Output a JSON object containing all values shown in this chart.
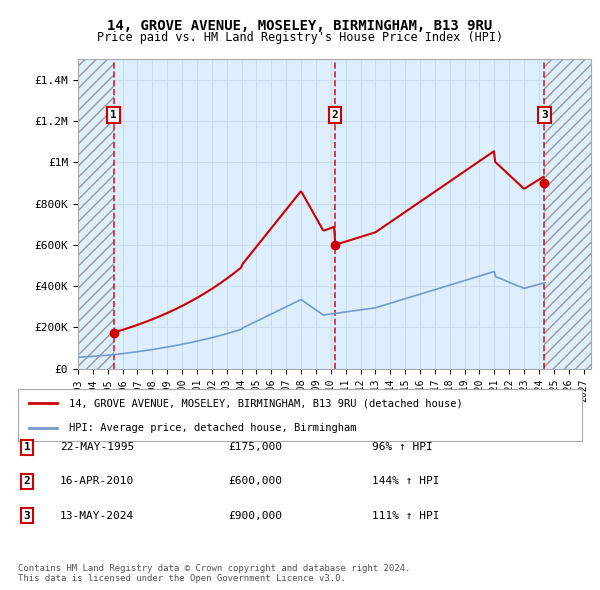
{
  "title": "14, GROVE AVENUE, MOSELEY, BIRMINGHAM, B13 9RU",
  "subtitle": "Price paid vs. HM Land Registry's House Price Index (HPI)",
  "xlim_start": 1993.0,
  "xlim_end": 2027.5,
  "ylim": [
    0,
    1500000
  ],
  "yticks": [
    0,
    200000,
    400000,
    600000,
    800000,
    1000000,
    1200000,
    1400000
  ],
  "ytick_labels": [
    "£0",
    "£200K",
    "£400K",
    "£600K",
    "£800K",
    "£1M",
    "£1.2M",
    "£1.4M"
  ],
  "xticks": [
    1993,
    1994,
    1995,
    1996,
    1997,
    1998,
    1999,
    2000,
    2001,
    2002,
    2003,
    2004,
    2005,
    2006,
    2007,
    2008,
    2009,
    2010,
    2011,
    2012,
    2013,
    2014,
    2015,
    2016,
    2017,
    2018,
    2019,
    2020,
    2021,
    2022,
    2023,
    2024,
    2025,
    2026,
    2027
  ],
  "sale_dates": [
    1995.388,
    2010.292,
    2024.369
  ],
  "sale_prices": [
    175000,
    600000,
    900000
  ],
  "sale_labels": [
    "1",
    "2",
    "3"
  ],
  "hatch_left_end": 1995.388,
  "hatch_right_start": 2024.369,
  "grid_color": "#ccddee",
  "plot_bg": "#ddeeff",
  "red_line_color": "#cc0000",
  "blue_line_color": "#7799cc",
  "dashed_line_color": "#cc0000",
  "legend_label_red": "14, GROVE AVENUE, MOSELEY, BIRMINGHAM, B13 9RU (detached house)",
  "legend_label_blue": "HPI: Average price, detached house, Birmingham",
  "table_rows": [
    [
      "1",
      "22-MAY-1995",
      "£175,000",
      "96% ↑ HPI"
    ],
    [
      "2",
      "16-APR-2010",
      "£600,000",
      "144% ↑ HPI"
    ],
    [
      "3",
      "13-MAY-2024",
      "£900,000",
      "111% ↑ HPI"
    ]
  ],
  "footnote": "Contains HM Land Registry data © Crown copyright and database right 2024.\nThis data is licensed under the Open Government Licence v3.0."
}
